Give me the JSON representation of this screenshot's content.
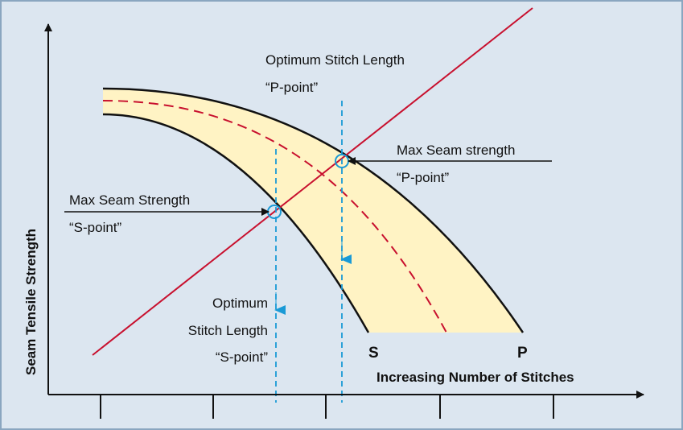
{
  "title": {
    "line1": "Optimum Stitch Length",
    "line2": "“P-point”"
  },
  "p_point_label": {
    "line1": "Max Seam strength",
    "line2": "“P-point”"
  },
  "s_point_label": {
    "line1": "Max Seam Strength",
    "line2": "“S-point”"
  },
  "s_optimum_label": {
    "line1": "Optimum",
    "line2": "Stitch Length",
    "line3": "“S-point”"
  },
  "curve_labels": {
    "s": "S",
    "p": "P"
  },
  "x_axis_label": "Increasing Number of Stitches",
  "y_axis_label": "Seam Tensile Strength"
}
